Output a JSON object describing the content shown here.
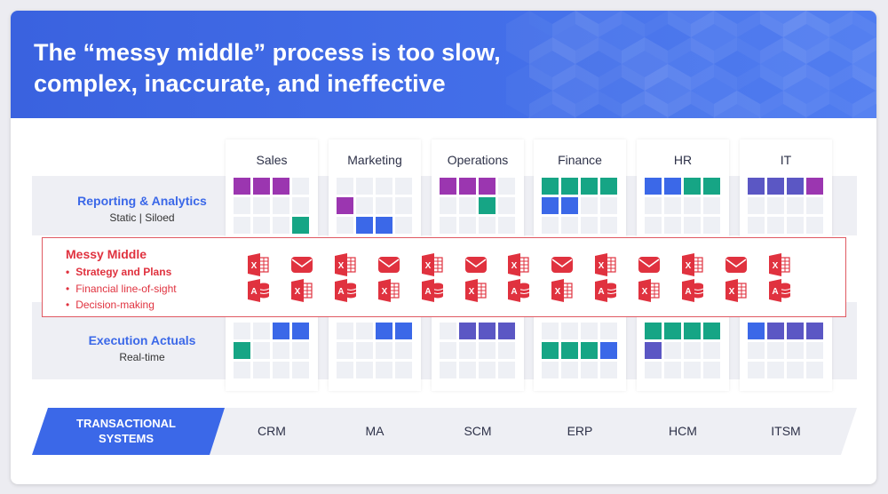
{
  "title": "The “messy middle” process is too slow, complex, inaccurate, and ineffective",
  "colors": {
    "header": "#3b68e8",
    "purple": "#9b36b0",
    "green": "#16a585",
    "blue": "#3b68e8",
    "indigo": "#5b57c4",
    "empty": "#eef0f5",
    "red": "#e0323f"
  },
  "rows": {
    "reporting": {
      "title": "Reporting & Analytics",
      "subtitle": "Static | Siloed"
    },
    "execution": {
      "title": "Execution Actuals",
      "subtitle": "Real-time"
    }
  },
  "grid_legend": {
    "P": "purple",
    "G": "green",
    "B": "blue",
    "I": "indigo",
    "_": "empty"
  },
  "columns": [
    {
      "name": "Sales",
      "system": "CRM",
      "top": [
        "PPP_",
        "____",
        "___G"
      ],
      "bottom": [
        "__BB",
        "G___",
        "____"
      ]
    },
    {
      "name": "Marketing",
      "system": "MA",
      "top": [
        "____",
        "P___",
        "_BB_"
      ],
      "bottom": [
        "__BB",
        "____",
        "____"
      ]
    },
    {
      "name": "Operations",
      "system": "SCM",
      "top": [
        "PPP_",
        "__G_",
        "____"
      ],
      "bottom": [
        "_III",
        "____",
        "____"
      ]
    },
    {
      "name": "Finance",
      "system": "ERP",
      "top": [
        "GGGG",
        "BB__",
        "____"
      ],
      "bottom": [
        "____",
        "GGGB",
        "____"
      ]
    },
    {
      "name": "HR",
      "system": "HCM",
      "top": [
        "BBGG",
        "____",
        "____"
      ],
      "bottom": [
        "GGGG",
        "I___",
        "____"
      ]
    },
    {
      "name": "IT",
      "system": "ITSM",
      "top": [
        "IIIP",
        "____",
        "____"
      ],
      "bottom": [
        "BIII",
        "____",
        "____"
      ]
    }
  ],
  "messy_middle": {
    "title": "Messy Middle",
    "items": [
      {
        "label": "Strategy and Plans",
        "bold": true
      },
      {
        "label": "Financial line-of-sight",
        "bold": false
      },
      {
        "label": "Decision-making",
        "bold": false
      }
    ],
    "icons_row1": [
      "excel-icon",
      "mail-icon",
      "excel-icon",
      "mail-icon",
      "excel-icon",
      "mail-icon",
      "excel-icon",
      "mail-icon",
      "excel-icon",
      "mail-icon",
      "excel-icon",
      "mail-icon",
      "excel-icon"
    ],
    "icons_row2": [
      "access-icon",
      "excel-icon",
      "access-icon",
      "excel-icon",
      "access-icon",
      "excel-icon",
      "access-icon",
      "excel-icon",
      "access-icon",
      "excel-icon",
      "access-icon",
      "excel-icon",
      "access-icon"
    ]
  },
  "transactional": {
    "label_line1": "TRANSACTIONAL",
    "label_line2": "SYSTEMS"
  }
}
